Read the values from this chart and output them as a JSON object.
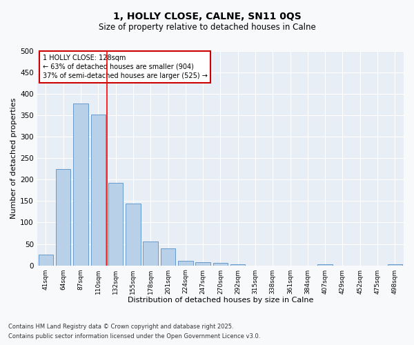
{
  "title_line1": "1, HOLLY CLOSE, CALNE, SN11 0QS",
  "title_line2": "Size of property relative to detached houses in Calne",
  "xlabel": "Distribution of detached houses by size in Calne",
  "ylabel": "Number of detached properties",
  "categories": [
    "41sqm",
    "64sqm",
    "87sqm",
    "110sqm",
    "132sqm",
    "155sqm",
    "178sqm",
    "201sqm",
    "224sqm",
    "247sqm",
    "270sqm",
    "292sqm",
    "315sqm",
    "338sqm",
    "361sqm",
    "384sqm",
    "407sqm",
    "429sqm",
    "452sqm",
    "475sqm",
    "498sqm"
  ],
  "values": [
    25,
    224,
    378,
    352,
    193,
    145,
    55,
    40,
    11,
    8,
    5,
    2,
    0,
    0,
    0,
    0,
    3,
    0,
    0,
    0,
    2
  ],
  "bar_color": "#b8d0e8",
  "bar_edge_color": "#6699cc",
  "red_line_index": 4,
  "annotation_text": "1 HOLLY CLOSE: 128sqm\n← 63% of detached houses are smaller (904)\n37% of semi-detached houses are larger (525) →",
  "annotation_box_color": "#ffffff",
  "annotation_box_edge_color": "#cc0000",
  "footnote_line1": "Contains HM Land Registry data © Crown copyright and database right 2025.",
  "footnote_line2": "Contains public sector information licensed under the Open Government Licence v3.0.",
  "fig_facecolor": "#f8f9fb",
  "ax_facecolor": "#e8eef5",
  "ylim": [
    0,
    500
  ],
  "yticks": [
    0,
    50,
    100,
    150,
    200,
    250,
    300,
    350,
    400,
    450,
    500
  ]
}
